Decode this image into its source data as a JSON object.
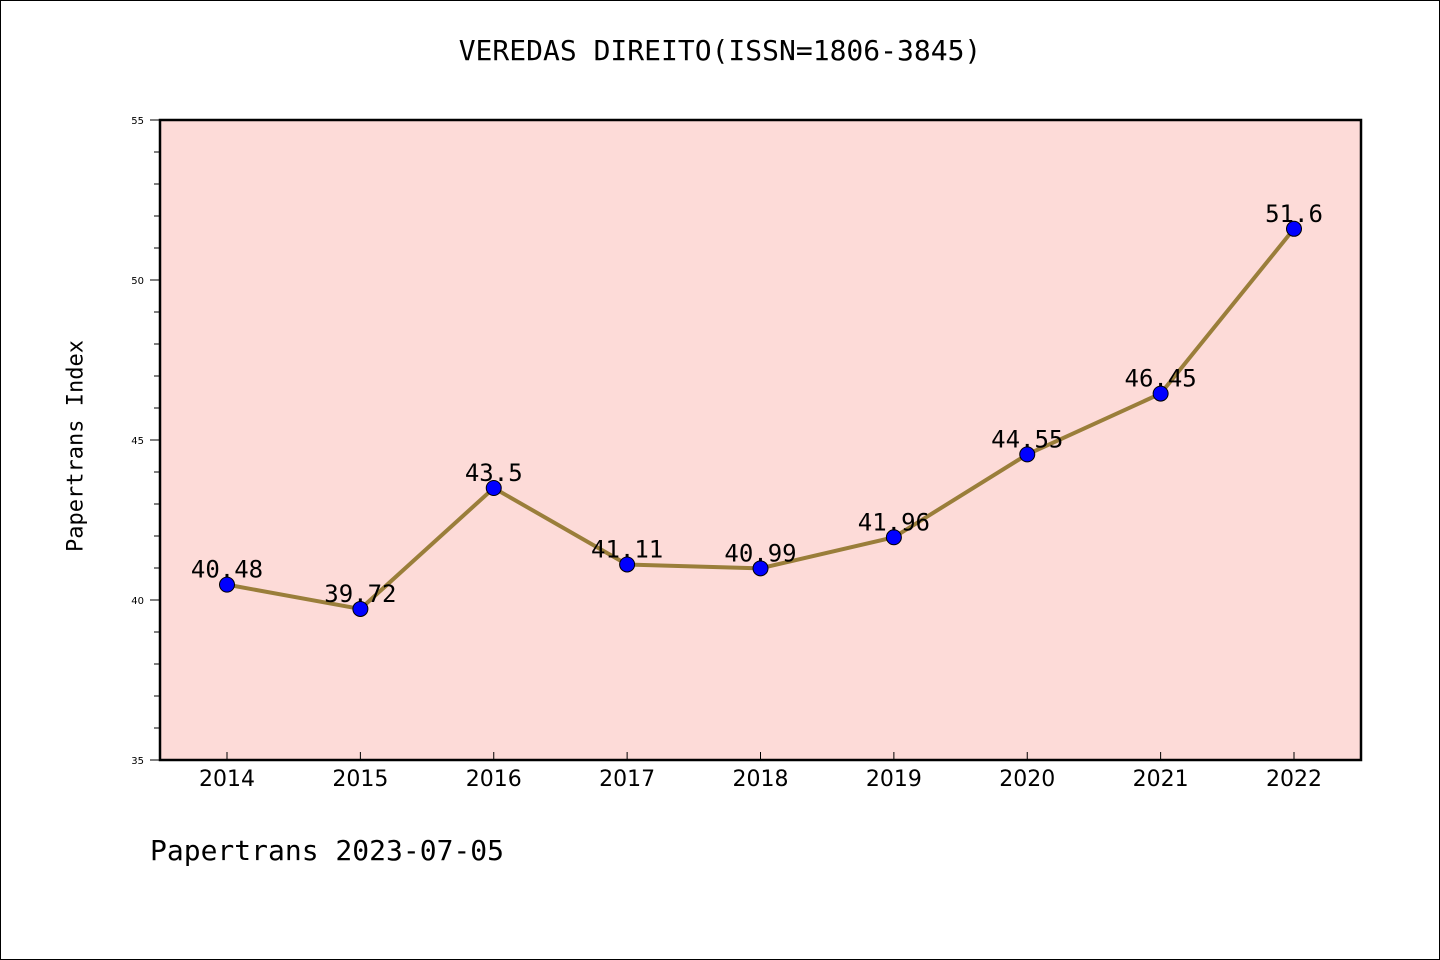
{
  "title": "VEREDAS DIREITO(ISSN=1806-3845)",
  "footer": "Papertrans 2023-07-05",
  "colors": {
    "plot_background": "#fddbd8",
    "line": "#9a7e3a",
    "marker": "#0000ff"
  },
  "chart_data": {
    "type": "line",
    "title": "VEREDAS DIREITO(ISSN=1806-3845)",
    "xlabel": "",
    "ylabel": "Papertrans Index",
    "categories": [
      "2014",
      "2015",
      "2016",
      "2017",
      "2018",
      "2019",
      "2020",
      "2021",
      "2022"
    ],
    "series": [
      {
        "values": [
          40.48,
          39.72,
          43.5,
          41.11,
          40.99,
          41.96,
          44.55,
          46.45,
          51.6
        ],
        "data_labels": [
          "40.48",
          "39.72",
          "43.5",
          "41.11",
          "40.99",
          "41.96",
          "44.55",
          "46.45",
          "51.6"
        ]
      }
    ],
    "ylim": [
      35,
      55
    ],
    "y_major_ticks": [
      35,
      40,
      45,
      50,
      55
    ],
    "y_minor_step": 1,
    "grid": false,
    "legend": "none"
  }
}
